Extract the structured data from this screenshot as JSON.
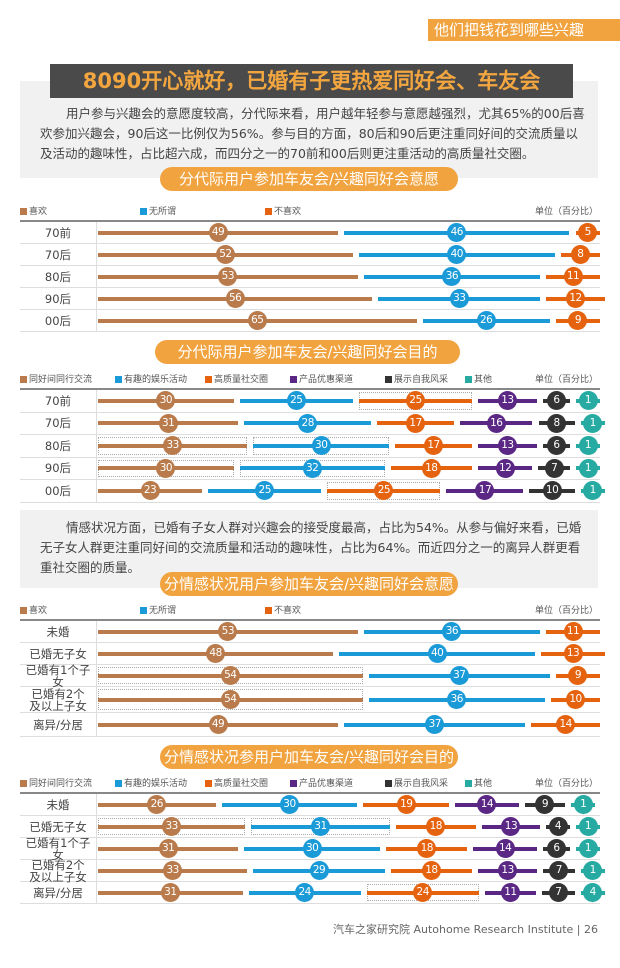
{
  "header_tag": "他们把钱花到哪些兴趣",
  "main_title": "8090开心就好，已婚有子更热爱同好会、车友会",
  "paragraph1": "用户参与兴趣会的意愿度较高，分代际来看，用户越年轻参与意愿越强烈，尤其65%的00后喜欢参加兴趣会，90后这一比例仅为56%。参与目的方面，80后和90后更注重同好间的交流质量以及活动的趣味性，占比超六成，而四分之一的70前和00后则更注重活动的高质量社交圈。",
  "paragraph2": "情感状况方面，已婚有子女人群对兴趣会的接受度最高，占比为54%。从参与偏好来看，已婚无子女人群更注重同好间的交流质量和活动的趣味性，占比为64%。而近四分之一的离异人群更看重社交圈的质量。",
  "footer": "汽车之家研究院  Autohome Research Institute  |  26",
  "colors": {
    "brown": "#b97b4b",
    "blue": "#1b9ad8",
    "orange": "#e5630f",
    "purple": "#5a2785",
    "black": "#333333",
    "teal": "#27aaa2",
    "accent": "#f1a33f"
  },
  "chart_data": [
    {
      "type": "table",
      "title": "分代际用户参加车友会/兴趣同好会意愿",
      "unit": "单位（百分比）",
      "legend": [
        "喜欢",
        "无所谓",
        "不喜欢"
      ],
      "series_colors": [
        "#b97b4b",
        "#1b9ad8",
        "#e5630f"
      ],
      "categories": [
        "70前",
        "70后",
        "80后",
        "90后",
        "00后"
      ],
      "values": [
        [
          49,
          46,
          5
        ],
        [
          52,
          40,
          8
        ],
        [
          53,
          36,
          11
        ],
        [
          56,
          33,
          12
        ],
        [
          65,
          26,
          9
        ]
      ],
      "highlight": []
    },
    {
      "type": "table",
      "title": "分代际用户参加车友会/兴趣同好会目的",
      "unit": "单位（百分比）",
      "legend": [
        "同好间同行交流",
        "有趣的娱乐活动",
        "高质量社交圈",
        "产品优惠渠道",
        "展示自我风采",
        "其他"
      ],
      "series_colors": [
        "#b97b4b",
        "#1b9ad8",
        "#e5630f",
        "#5a2785",
        "#333333",
        "#27aaa2"
      ],
      "categories": [
        "70前",
        "70后",
        "80后",
        "90后",
        "00后"
      ],
      "values": [
        [
          30,
          25,
          25,
          13,
          6,
          1
        ],
        [
          31,
          28,
          17,
          16,
          8,
          1
        ],
        [
          33,
          30,
          17,
          13,
          6,
          1
        ],
        [
          30,
          32,
          18,
          12,
          7,
          1
        ],
        [
          23,
          25,
          25,
          17,
          10,
          1
        ]
      ],
      "highlight": [
        [
          2
        ],
        [],
        [
          0,
          1
        ],
        [
          0,
          1
        ],
        [
          2
        ]
      ]
    },
    {
      "type": "table",
      "title": "分情感状况用户参加车友会/兴趣同好会意愿",
      "unit": "单位（百分比）",
      "legend": [
        "喜欢",
        "无所谓",
        "不喜欢"
      ],
      "series_colors": [
        "#b97b4b",
        "#1b9ad8",
        "#e5630f"
      ],
      "categories": [
        "未婚",
        "已婚无子女",
        "已婚有1个子女",
        "已婚有2个\n及以上子女",
        "离异/分居"
      ],
      "values": [
        [
          53,
          36,
          11
        ],
        [
          48,
          40,
          13
        ],
        [
          54,
          37,
          9
        ],
        [
          54,
          36,
          10
        ],
        [
          49,
          37,
          14
        ]
      ],
      "highlight": [
        [],
        [],
        [
          0
        ],
        [
          0
        ],
        []
      ]
    },
    {
      "type": "table",
      "title": "分情感状况参用户加车友会/兴趣同好会目的",
      "unit": "单位（百分比）",
      "legend": [
        "同好间同行交流",
        "有趣的娱乐活动",
        "高质量社交圈",
        "产品优惠渠道",
        "展示自我风采",
        "其他"
      ],
      "series_colors": [
        "#b97b4b",
        "#1b9ad8",
        "#e5630f",
        "#5a2785",
        "#333333",
        "#27aaa2"
      ],
      "categories": [
        "未婚",
        "已婚无子女",
        "已婚有1个子女",
        "已婚有2个\n及以上子女",
        "离异/分居"
      ],
      "values": [
        [
          26,
          30,
          19,
          14,
          9,
          1
        ],
        [
          33,
          31,
          18,
          13,
          4,
          1
        ],
        [
          31,
          30,
          18,
          14,
          6,
          1
        ],
        [
          33,
          29,
          18,
          13,
          7,
          1
        ],
        [
          31,
          24,
          24,
          11,
          7,
          4
        ]
      ],
      "highlight": [
        [],
        [
          0,
          1
        ],
        [],
        [],
        [
          2
        ]
      ]
    }
  ]
}
